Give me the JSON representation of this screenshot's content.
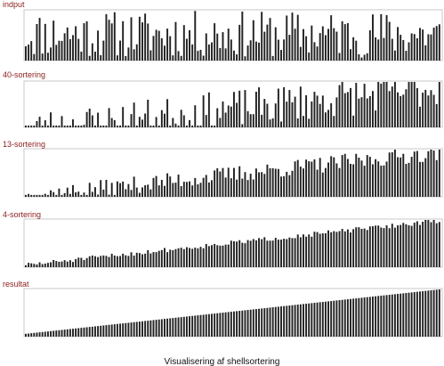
{
  "caption": "Visualisering af shellsortering",
  "colors": {
    "label": "#8b1d1d",
    "bar": "#222222",
    "frame": "#c8c8c8"
  },
  "chart_data": {
    "type": "bar",
    "bar_count": 150,
    "value_range": [
      0,
      1
    ],
    "panels": [
      {
        "id": "input",
        "label": "indput",
        "kind": "random",
        "seed": 11
      },
      {
        "id": "h40",
        "label": "40-sortering",
        "kind": "partial",
        "noise": 0.42,
        "seed": 23
      },
      {
        "id": "h13",
        "label": "13-sortering",
        "kind": "partial",
        "noise": 0.18,
        "seed": 37
      },
      {
        "id": "h4",
        "label": "4-sortering",
        "kind": "partial",
        "noise": 0.05,
        "seed": 51
      },
      {
        "id": "result",
        "label": "resultat",
        "kind": "sorted",
        "seed": 0
      }
    ]
  }
}
